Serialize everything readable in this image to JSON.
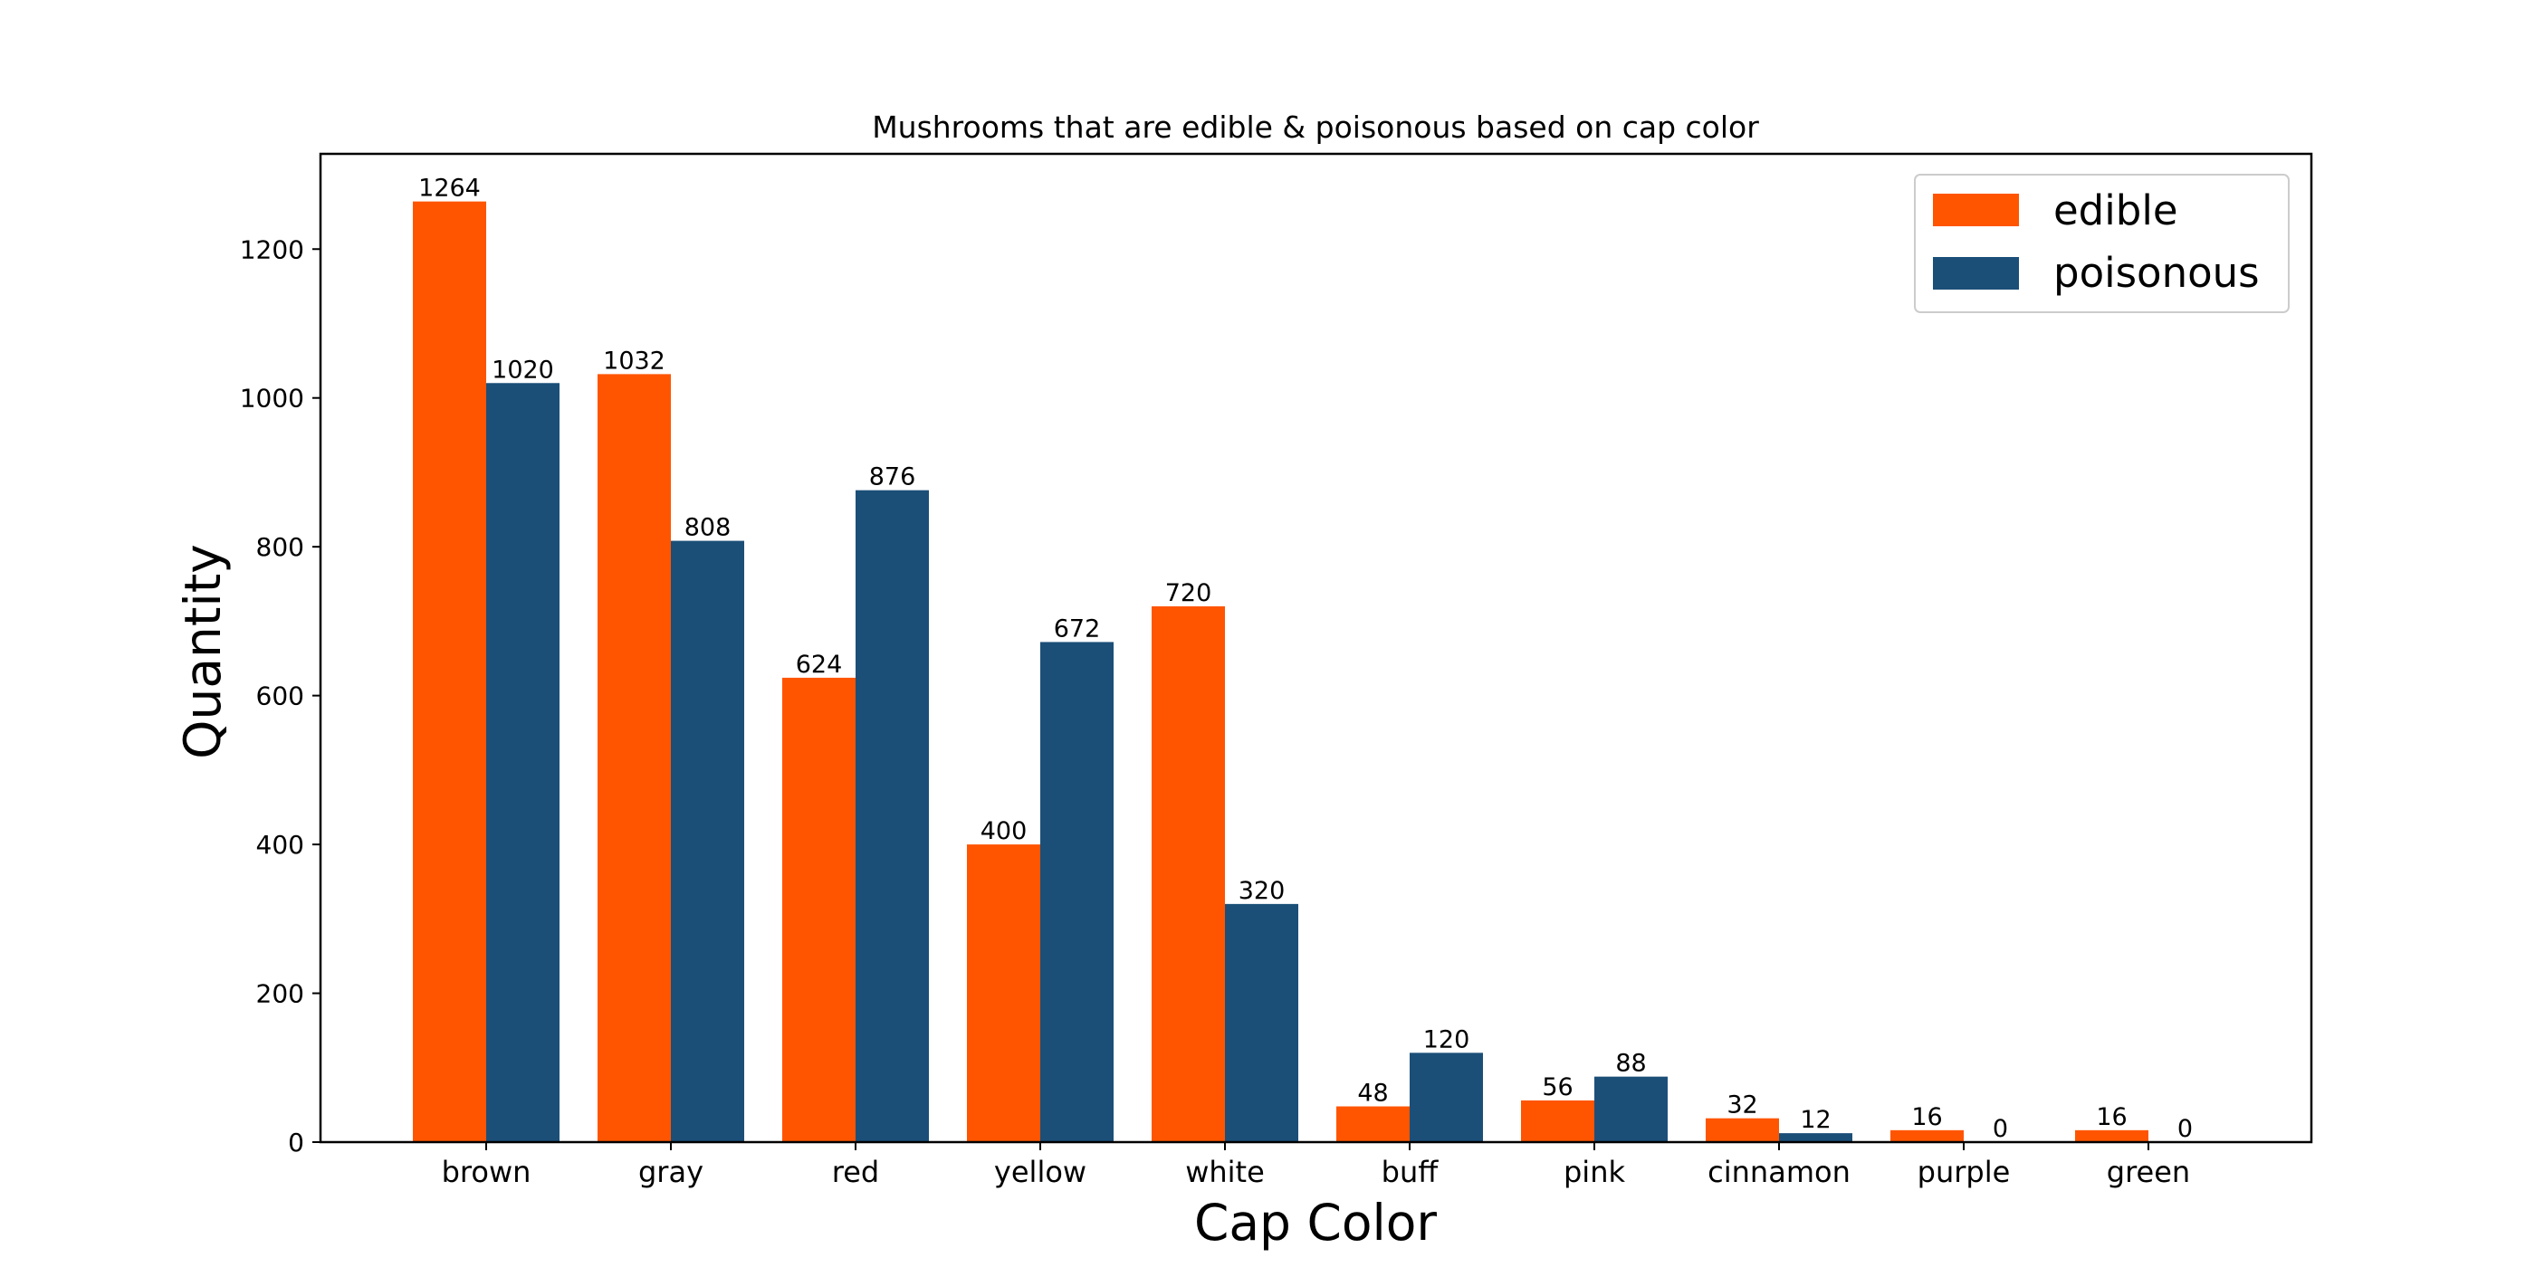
{
  "chart_data": {
    "type": "bar",
    "title": "Mushrooms that are edible & poisonous based on cap color",
    "xlabel": "Cap Color",
    "ylabel": "Quantity",
    "categories": [
      "brown",
      "gray",
      "red",
      "yellow",
      "white",
      "buff",
      "pink",
      "cinnamon",
      "purple",
      "green"
    ],
    "series": [
      {
        "name": "edible",
        "color": "#ff5500",
        "values": [
          1264,
          1032,
          624,
          400,
          720,
          48,
          56,
          32,
          16,
          16
        ]
      },
      {
        "name": "poisonous",
        "color": "#1b4f78",
        "values": [
          1020,
          808,
          876,
          672,
          320,
          120,
          88,
          12,
          0,
          0
        ]
      }
    ],
    "ylim": [
      0,
      1328
    ],
    "yticks": [
      0,
      200,
      400,
      600,
      800,
      1000,
      1200
    ],
    "grid": false,
    "legend_position": "top-right"
  }
}
